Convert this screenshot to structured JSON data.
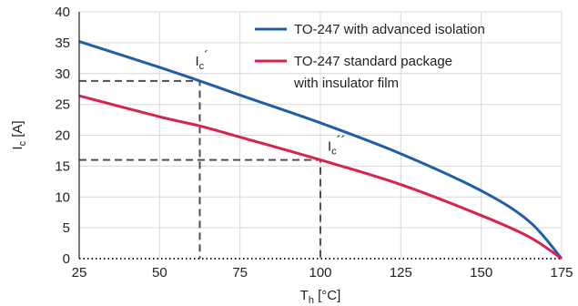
{
  "chart_data": {
    "type": "line",
    "xlabel": {
      "main": "T",
      "sub": "h",
      "unit": " [°C]"
    },
    "ylabel": {
      "main": "I",
      "sub": "c",
      "unit": " [A]"
    },
    "xlim": [
      25,
      175
    ],
    "ylim": [
      0,
      40
    ],
    "xticks": [
      25,
      50,
      75,
      100,
      125,
      150,
      175
    ],
    "yticks": [
      0,
      5,
      10,
      15,
      20,
      25,
      30,
      35,
      40
    ],
    "grid": true,
    "legend_position": "top-right",
    "colors": {
      "series1": "#1f5fa8",
      "series2": "#d8234a",
      "guide": "#5a4a4a",
      "grid": "#d9d9d9"
    },
    "series": [
      {
        "name": "TO-247 with advanced isolation",
        "x": [
          25,
          50,
          62.5,
          75,
          100,
          125,
          150,
          165,
          175
        ],
        "y": [
          35.2,
          31,
          28.8,
          26.5,
          22,
          17,
          11,
          6,
          0
        ]
      },
      {
        "name": "TO-247 standard package with insulator film",
        "name_lines": [
          "TO-247 standard package",
          "with insulator film"
        ],
        "x": [
          25,
          50,
          62.5,
          75,
          100,
          125,
          150,
          165,
          175
        ],
        "y": [
          26.4,
          23,
          21.5,
          19.7,
          16,
          12,
          7,
          3.5,
          0
        ]
      }
    ],
    "annotations": [
      {
        "main": "I",
        "sub": "c",
        "mark": "´",
        "x": 62.5,
        "y": 28.8
      },
      {
        "main": "I",
        "sub": "c",
        "mark": "´´",
        "x": 100,
        "y": 16
      }
    ],
    "guides": [
      {
        "x": 62.5,
        "y": 28.8
      },
      {
        "x": 100,
        "y": 16
      }
    ]
  }
}
